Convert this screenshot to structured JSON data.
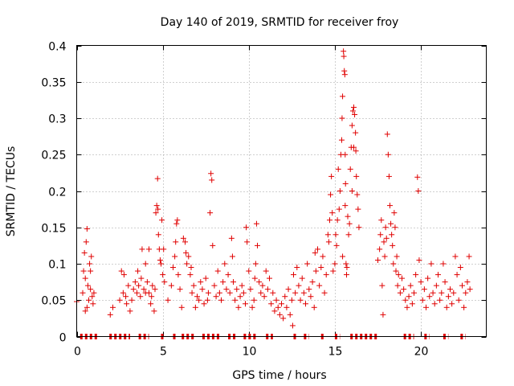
{
  "chart_data": {
    "type": "scatter",
    "title": "Day 140 of 2019, SRMTID for receiver froy",
    "xlabel": "GPS time / hours",
    "ylabel": "SRMTID / TECUs",
    "xlim": [
      0,
      23.8
    ],
    "ylim": [
      0,
      0.4
    ],
    "xticks": [
      0,
      5,
      10,
      15,
      20
    ],
    "yticks": [
      0,
      0.05,
      0.1,
      0.15,
      0.2,
      0.25,
      0.3,
      0.35,
      0.4
    ],
    "xtick_labels": [
      "0",
      "5",
      "10",
      "15",
      "20"
    ],
    "ytick_labels": [
      "0",
      "0.05",
      "0.1",
      "0.15",
      "0.2",
      "0.25",
      "0.3",
      "0.35",
      "0.4"
    ],
    "grid": true,
    "marker": "+",
    "color": "#e00000",
    "series": [
      {
        "name": "SRMTID",
        "points": [
          [
            0.0,
            0.048
          ],
          [
            0.35,
            0.06
          ],
          [
            0.4,
            0.09
          ],
          [
            0.45,
            0.115
          ],
          [
            0.5,
            0.035
          ],
          [
            0.55,
            0.13
          ],
          [
            0.6,
            0.148
          ],
          [
            0.65,
            0.07
          ],
          [
            0.7,
            0.05
          ],
          [
            0.75,
            0.1
          ],
          [
            0.8,
            0.065
          ],
          [
            0.85,
            0.11
          ],
          [
            0.9,
            0.055
          ],
          [
            0.95,
            0.045
          ],
          [
            1.0,
            0.06
          ],
          [
            0.5,
            0.08
          ],
          [
            0.6,
            0.04
          ],
          [
            0.8,
            0.09
          ],
          [
            1.95,
            0.03
          ],
          [
            2.1,
            0.04
          ],
          [
            2.5,
            0.05
          ],
          [
            2.6,
            0.09
          ],
          [
            2.7,
            0.06
          ],
          [
            2.75,
            0.085
          ],
          [
            2.85,
            0.055
          ],
          [
            2.9,
            0.045
          ],
          [
            3.0,
            0.07
          ],
          [
            3.1,
            0.035
          ],
          [
            3.2,
            0.05
          ],
          [
            3.3,
            0.065
          ],
          [
            3.4,
            0.075
          ],
          [
            3.5,
            0.06
          ],
          [
            3.55,
            0.09
          ],
          [
            3.6,
            0.07
          ],
          [
            3.7,
            0.055
          ],
          [
            3.75,
            0.08
          ],
          [
            3.8,
            0.12
          ],
          [
            3.9,
            0.065
          ],
          [
            4.0,
            0.1
          ],
          [
            4.1,
            0.075
          ],
          [
            4.2,
            0.06
          ],
          [
            4.3,
            0.045
          ],
          [
            4.35,
            0.055
          ],
          [
            4.4,
            0.07
          ],
          [
            4.5,
            0.035
          ],
          [
            4.55,
            0.065
          ],
          [
            4.6,
            0.17
          ],
          [
            4.65,
            0.18
          ],
          [
            4.7,
            0.217
          ],
          [
            4.72,
            0.175
          ],
          [
            4.75,
            0.14
          ],
          [
            4.8,
            0.12
          ],
          [
            4.85,
            0.105
          ],
          [
            4.9,
            0.1
          ],
          [
            4.95,
            0.16
          ],
          [
            5.0,
            0.085
          ],
          [
            5.05,
            0.12
          ],
          [
            5.1,
            0.075
          ],
          [
            4.2,
            0.12
          ],
          [
            4.0,
            0.06
          ],
          [
            5.3,
            0.05
          ],
          [
            5.5,
            0.07
          ],
          [
            5.6,
            0.095
          ],
          [
            5.7,
            0.11
          ],
          [
            5.75,
            0.13
          ],
          [
            5.8,
            0.155
          ],
          [
            5.85,
            0.16
          ],
          [
            5.9,
            0.085
          ],
          [
            6.0,
            0.065
          ],
          [
            6.1,
            0.04
          ],
          [
            6.2,
            0.135
          ],
          [
            6.3,
            0.13
          ],
          [
            6.35,
            0.115
          ],
          [
            6.4,
            0.1
          ],
          [
            6.5,
            0.11
          ],
          [
            6.6,
            0.085
          ],
          [
            6.65,
            0.095
          ],
          [
            6.7,
            0.06
          ],
          [
            6.8,
            0.07
          ],
          [
            6.9,
            0.04
          ],
          [
            7.0,
            0.055
          ],
          [
            7.1,
            0.05
          ],
          [
            7.2,
            0.075
          ],
          [
            7.3,
            0.065
          ],
          [
            7.4,
            0.045
          ],
          [
            7.5,
            0.08
          ],
          [
            7.6,
            0.05
          ],
          [
            7.65,
            0.06
          ],
          [
            7.75,
            0.17
          ],
          [
            7.8,
            0.224
          ],
          [
            7.85,
            0.215
          ],
          [
            7.9,
            0.125
          ],
          [
            8.0,
            0.07
          ],
          [
            8.1,
            0.055
          ],
          [
            8.2,
            0.09
          ],
          [
            8.3,
            0.06
          ],
          [
            8.4,
            0.05
          ],
          [
            8.5,
            0.075
          ],
          [
            8.6,
            0.1
          ],
          [
            8.7,
            0.065
          ],
          [
            8.8,
            0.085
          ],
          [
            8.9,
            0.06
          ],
          [
            9.0,
            0.135
          ],
          [
            9.05,
            0.11
          ],
          [
            9.1,
            0.075
          ],
          [
            9.2,
            0.05
          ],
          [
            9.3,
            0.065
          ],
          [
            9.4,
            0.04
          ],
          [
            9.5,
            0.055
          ],
          [
            9.6,
            0.07
          ],
          [
            9.7,
            0.06
          ],
          [
            9.8,
            0.045
          ],
          [
            9.85,
            0.15
          ],
          [
            9.9,
            0.13
          ],
          [
            10.0,
            0.09
          ],
          [
            10.1,
            0.065
          ],
          [
            10.2,
            0.04
          ],
          [
            10.3,
            0.05
          ],
          [
            10.35,
            0.08
          ],
          [
            10.4,
            0.1
          ],
          [
            10.45,
            0.155
          ],
          [
            10.5,
            0.125
          ],
          [
            10.6,
            0.075
          ],
          [
            10.7,
            0.06
          ],
          [
            10.8,
            0.07
          ],
          [
            10.9,
            0.055
          ],
          [
            11.0,
            0.09
          ],
          [
            11.1,
            0.065
          ],
          [
            11.2,
            0.08
          ],
          [
            11.3,
            0.045
          ],
          [
            11.4,
            0.06
          ],
          [
            11.5,
            0.035
          ],
          [
            11.6,
            0.05
          ],
          [
            11.7,
            0.04
          ],
          [
            11.8,
            0.03
          ],
          [
            11.9,
            0.045
          ],
          [
            12.0,
            0.025
          ],
          [
            12.1,
            0.055
          ],
          [
            12.2,
            0.04
          ],
          [
            12.3,
            0.065
          ],
          [
            12.4,
            0.03
          ],
          [
            12.5,
            0.05
          ],
          [
            12.55,
            0.015
          ],
          [
            12.6,
            0.085
          ],
          [
            12.7,
            0.06
          ],
          [
            12.8,
            0.095
          ],
          [
            12.9,
            0.07
          ],
          [
            13.0,
            0.05
          ],
          [
            13.1,
            0.08
          ],
          [
            13.2,
            0.06
          ],
          [
            13.3,
            0.045
          ],
          [
            13.4,
            0.1
          ],
          [
            13.5,
            0.065
          ],
          [
            13.6,
            0.055
          ],
          [
            13.7,
            0.075
          ],
          [
            13.8,
            0.04
          ],
          [
            13.85,
            0.115
          ],
          [
            13.9,
            0.09
          ],
          [
            14.0,
            0.12
          ],
          [
            14.1,
            0.07
          ],
          [
            14.2,
            0.095
          ],
          [
            14.3,
            0.11
          ],
          [
            14.4,
            0.06
          ],
          [
            14.5,
            0.085
          ],
          [
            14.6,
            0.14
          ],
          [
            14.65,
            0.13
          ],
          [
            14.7,
            0.16
          ],
          [
            14.75,
            0.195
          ],
          [
            14.8,
            0.22
          ],
          [
            14.85,
            0.17
          ],
          [
            14.9,
            0.09
          ],
          [
            15.0,
            0.1
          ],
          [
            15.05,
            0.14
          ],
          [
            15.1,
            0.125
          ],
          [
            15.15,
            0.16
          ],
          [
            15.2,
            0.23
          ],
          [
            15.25,
            0.175
          ],
          [
            15.3,
            0.2
          ],
          [
            15.35,
            0.25
          ],
          [
            15.4,
            0.27
          ],
          [
            15.42,
            0.3
          ],
          [
            15.45,
            0.33
          ],
          [
            15.5,
            0.392
          ],
          [
            15.52,
            0.385
          ],
          [
            15.55,
            0.365
          ],
          [
            15.58,
            0.36
          ],
          [
            15.6,
            0.25
          ],
          [
            15.62,
            0.21
          ],
          [
            15.65,
            0.1
          ],
          [
            15.68,
            0.085
          ],
          [
            15.7,
            0.095
          ],
          [
            15.75,
            0.165
          ],
          [
            15.8,
            0.14
          ],
          [
            15.85,
            0.155
          ],
          [
            15.9,
            0.23
          ],
          [
            15.95,
            0.26
          ],
          [
            16.0,
            0.29
          ],
          [
            16.05,
            0.31
          ],
          [
            16.1,
            0.315
          ],
          [
            16.15,
            0.305
          ],
          [
            16.2,
            0.28
          ],
          [
            16.22,
            0.255
          ],
          [
            16.25,
            0.22
          ],
          [
            16.3,
            0.195
          ],
          [
            16.35,
            0.175
          ],
          [
            16.4,
            0.15
          ],
          [
            15.45,
            0.11
          ],
          [
            15.6,
            0.18
          ],
          [
            16.1,
            0.26
          ],
          [
            16.0,
            0.2
          ],
          [
            17.5,
            0.105
          ],
          [
            17.6,
            0.12
          ],
          [
            17.65,
            0.14
          ],
          [
            17.7,
            0.16
          ],
          [
            17.75,
            0.07
          ],
          [
            17.8,
            0.03
          ],
          [
            17.85,
            0.13
          ],
          [
            17.9,
            0.11
          ],
          [
            17.95,
            0.15
          ],
          [
            18.0,
            0.135
          ],
          [
            18.05,
            0.278
          ],
          [
            18.1,
            0.25
          ],
          [
            18.15,
            0.22
          ],
          [
            18.2,
            0.18
          ],
          [
            18.25,
            0.155
          ],
          [
            18.3,
            0.14
          ],
          [
            18.35,
            0.125
          ],
          [
            18.4,
            0.1
          ],
          [
            18.45,
            0.17
          ],
          [
            18.5,
            0.15
          ],
          [
            18.55,
            0.09
          ],
          [
            18.6,
            0.11
          ],
          [
            18.65,
            0.07
          ],
          [
            18.7,
            0.085
          ],
          [
            18.8,
            0.06
          ],
          [
            18.9,
            0.08
          ],
          [
            19.0,
            0.065
          ],
          [
            19.1,
            0.05
          ],
          [
            19.2,
            0.04
          ],
          [
            19.3,
            0.055
          ],
          [
            19.4,
            0.07
          ],
          [
            19.5,
            0.045
          ],
          [
            19.6,
            0.06
          ],
          [
            19.7,
            0.085
          ],
          [
            19.8,
            0.219
          ],
          [
            19.85,
            0.2
          ],
          [
            19.9,
            0.105
          ],
          [
            20.0,
            0.075
          ],
          [
            20.1,
            0.05
          ],
          [
            20.2,
            0.065
          ],
          [
            20.3,
            0.04
          ],
          [
            20.4,
            0.08
          ],
          [
            20.5,
            0.055
          ],
          [
            20.6,
            0.1
          ],
          [
            20.7,
            0.06
          ],
          [
            20.8,
            0.045
          ],
          [
            20.9,
            0.07
          ],
          [
            21.0,
            0.085
          ],
          [
            21.1,
            0.05
          ],
          [
            21.2,
            0.06
          ],
          [
            21.3,
            0.1
          ],
          [
            21.4,
            0.075
          ],
          [
            21.5,
            0.04
          ],
          [
            21.6,
            0.055
          ],
          [
            21.7,
            0.065
          ],
          [
            21.8,
            0.045
          ],
          [
            21.9,
            0.06
          ],
          [
            22.0,
            0.11
          ],
          [
            22.1,
            0.085
          ],
          [
            22.2,
            0.05
          ],
          [
            22.3,
            0.095
          ],
          [
            22.4,
            0.07
          ],
          [
            22.5,
            0.04
          ],
          [
            22.6,
            0.06
          ],
          [
            22.7,
            0.075
          ],
          [
            22.8,
            0.11
          ],
          [
            22.85,
            0.065
          ]
        ]
      }
    ],
    "zero_runs": [
      [
        0.2,
        1.3
      ],
      [
        1.9,
        3.1
      ],
      [
        3.6,
        4.2
      ],
      [
        4.9,
        5.1
      ],
      [
        5.6,
        5.8
      ],
      [
        6.1,
        6.9
      ],
      [
        7.3,
        8.3
      ],
      [
        8.8,
        9.3
      ],
      [
        9.7,
        10.4
      ],
      [
        11.0,
        11.4
      ],
      [
        12.6,
        12.8
      ],
      [
        13.2,
        13.5
      ],
      [
        14.2,
        14.4
      ],
      [
        15.0,
        15.3
      ],
      [
        15.9,
        17.5
      ],
      [
        19.0,
        19.6
      ],
      [
        20.2,
        20.5
      ],
      [
        21.3,
        21.6
      ],
      [
        22.3,
        22.6
      ]
    ]
  }
}
